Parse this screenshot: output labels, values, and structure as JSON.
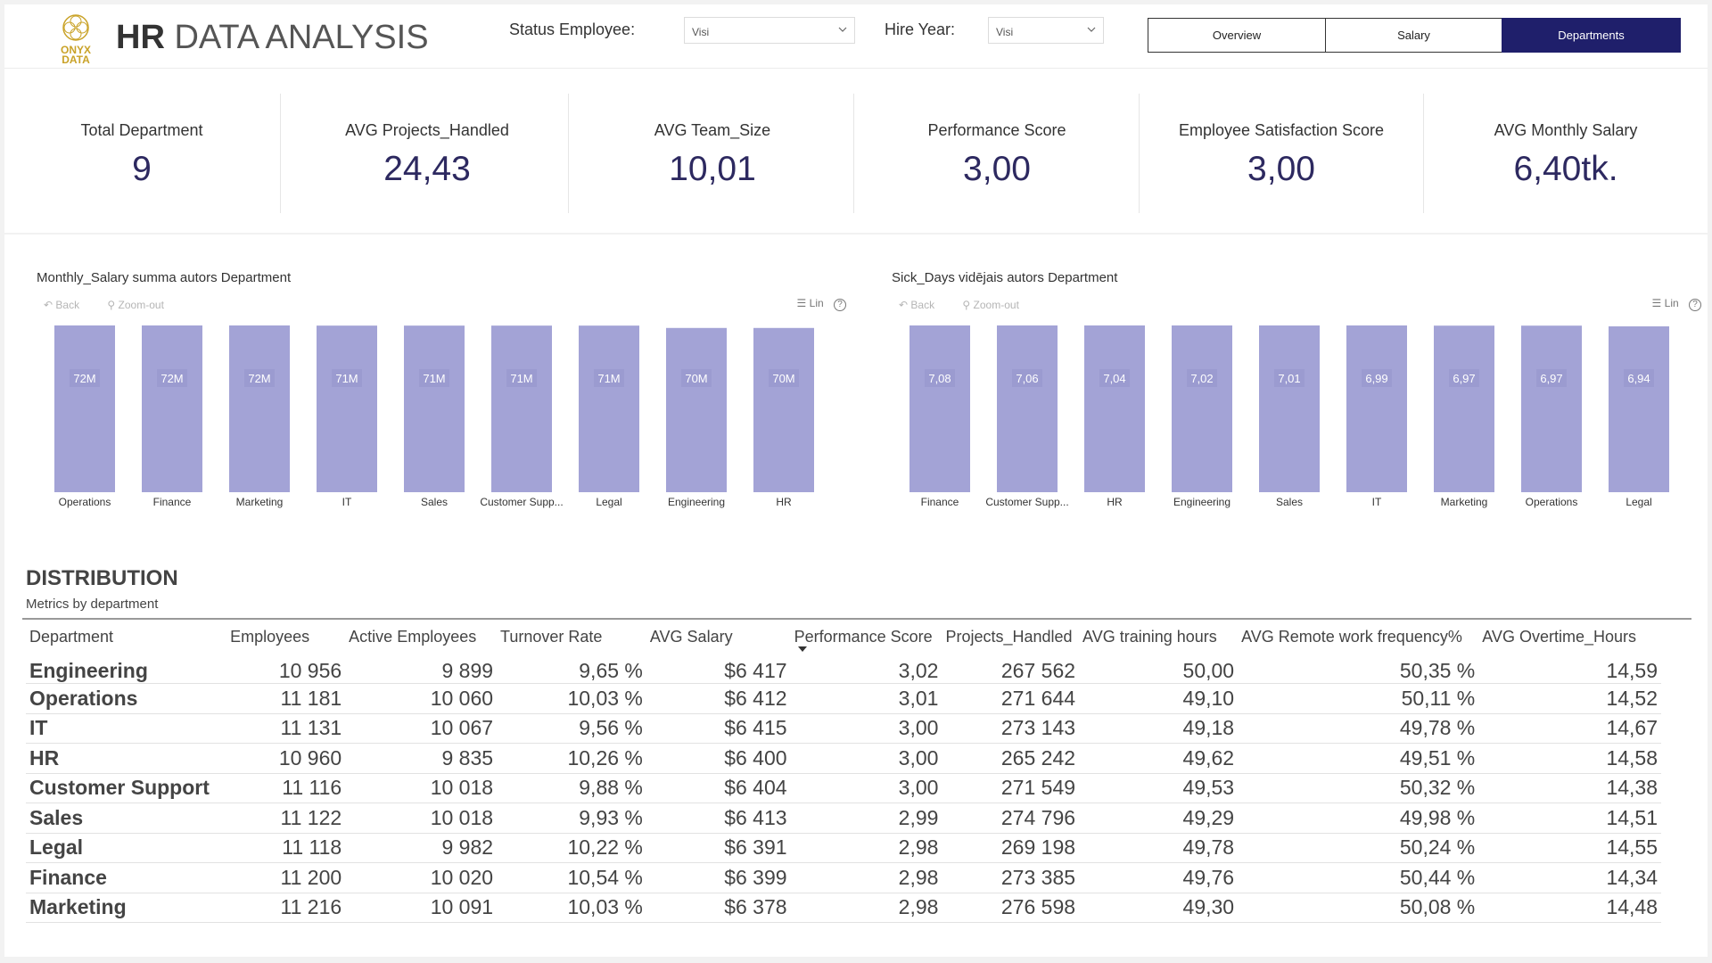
{
  "header": {
    "logo_text": "ONYX\nDATA",
    "title_bold": "HR",
    "title_rest": " DATA ANALYSIS",
    "filters": [
      {
        "label": "Status Employee:",
        "value": "Visi"
      },
      {
        "label": "Hire Year:",
        "value": "Visi"
      }
    ],
    "nav": [
      {
        "label": "Overview",
        "active": false
      },
      {
        "label": "Salary",
        "active": false
      },
      {
        "label": "Departments",
        "active": true
      }
    ]
  },
  "kpis": [
    {
      "label": "Total Department",
      "value": "9"
    },
    {
      "label": "AVG Projects_Handled",
      "value": "24,43"
    },
    {
      "label": "AVG Team_Size",
      "value": "10,01"
    },
    {
      "label": "Performance Score",
      "value": "3,00"
    },
    {
      "label": "Employee Satisfaction Score",
      "value": "3,00"
    },
    {
      "label": "AVG Monthly Salary",
      "value": "6,40tk."
    }
  ],
  "charts": {
    "tools": {
      "back": "Back",
      "zoom_out": "Zoom-out",
      "lin": "Lin"
    },
    "bar_color": "#a3a3d6"
  },
  "chart_data": [
    {
      "type": "bar",
      "title": "Monthly_Salary summa autors Department",
      "categories": [
        "Operations",
        "Finance",
        "Marketing",
        "IT",
        "Sales",
        "Customer Supp...",
        "Legal",
        "Engineering",
        "HR"
      ],
      "values": [
        72,
        72,
        72,
        71,
        71,
        71,
        71,
        70,
        70
      ],
      "value_labels": [
        "72M",
        "72M",
        "72M",
        "71M",
        "71M",
        "71M",
        "71M",
        "70M",
        "70M"
      ],
      "ylim": [
        0,
        72.2
      ]
    },
    {
      "type": "bar",
      "title": "Sick_Days vidējais autors Department",
      "categories": [
        "Finance",
        "Customer Supp...",
        "HR",
        "Engineering",
        "Sales",
        "IT",
        "Marketing",
        "Operations",
        "Legal"
      ],
      "values": [
        7.08,
        7.06,
        7.04,
        7.02,
        7.01,
        6.99,
        6.97,
        6.97,
        6.94
      ],
      "value_labels": [
        "7,08",
        "7,06",
        "7,04",
        "7,02",
        "7,01",
        "6,99",
        "6,97",
        "6,97",
        "6,94"
      ],
      "ylim": [
        0,
        7.09
      ]
    }
  ],
  "distribution": {
    "title": "DISTRIBUTION",
    "subtitle": "Metrics by department",
    "columns": [
      "Department",
      "Employees",
      "Active Employees",
      "Turnover Rate",
      "AVG Salary",
      "Performance Score",
      "Projects_Handled",
      "AVG training hours",
      "AVG Remote work frequency%",
      "AVG Overtime_Hours"
    ],
    "rows": [
      [
        "Engineering",
        "10 956",
        "9 899",
        "9,65 %",
        "$6 417",
        "3,02",
        "267 562",
        "50,00",
        "50,35 %",
        "14,59"
      ],
      [
        "Operations",
        "11 181",
        "10 060",
        "10,03 %",
        "$6 412",
        "3,01",
        "271 644",
        "49,10",
        "50,11 %",
        "14,52"
      ],
      [
        "IT",
        "11 131",
        "10 067",
        "9,56 %",
        "$6 415",
        "3,00",
        "273 143",
        "49,18",
        "49,78 %",
        "14,67"
      ],
      [
        "HR",
        "10 960",
        "9 835",
        "10,26 %",
        "$6 400",
        "3,00",
        "265 242",
        "49,62",
        "49,51 %",
        "14,58"
      ],
      [
        "Customer Support",
        "11 116",
        "10 018",
        "9,88 %",
        "$6 404",
        "3,00",
        "271 549",
        "49,53",
        "50,32 %",
        "14,38"
      ],
      [
        "Sales",
        "11 122",
        "10 018",
        "9,93 %",
        "$6 413",
        "2,99",
        "274 796",
        "49,29",
        "49,98 %",
        "14,51"
      ],
      [
        "Legal",
        "11 118",
        "9 982",
        "10,22 %",
        "$6 391",
        "2,98",
        "269 198",
        "49,78",
        "50,24 %",
        "14,55"
      ],
      [
        "Finance",
        "11 200",
        "10 020",
        "10,54 %",
        "$6 399",
        "2,98",
        "273 385",
        "49,76",
        "50,44 %",
        "14,34"
      ],
      [
        "Marketing",
        "11 216",
        "10 091",
        "10,03 %",
        "$6 378",
        "2,98",
        "276 598",
        "49,30",
        "50,08 %",
        "14,48"
      ]
    ]
  }
}
